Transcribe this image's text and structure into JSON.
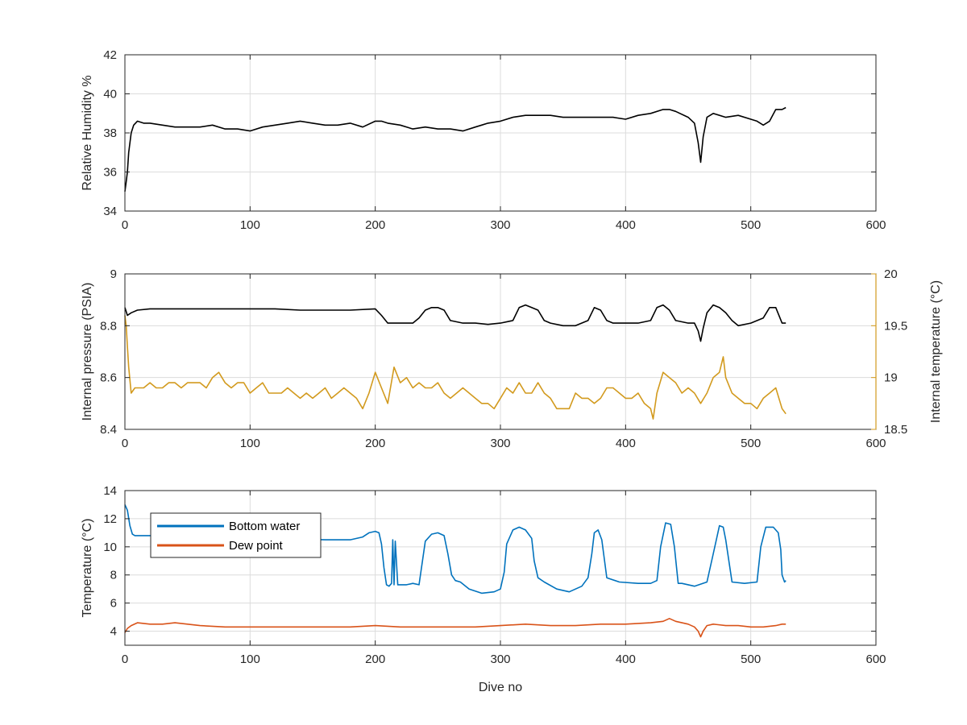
{
  "chart_data": [
    {
      "type": "line",
      "xlabel": "",
      "ylabel": "Relative Humidity %",
      "xlim": [
        0,
        600
      ],
      "ylim": [
        34,
        42
      ],
      "xticks": [
        0,
        100,
        200,
        300,
        400,
        500,
        600
      ],
      "yticks": [
        34,
        36,
        38,
        40,
        42
      ],
      "grid": true,
      "series": [
        {
          "color": "#000000",
          "x": [
            0,
            1,
            2,
            3,
            5,
            7,
            10,
            15,
            20,
            30,
            40,
            50,
            60,
            70,
            80,
            90,
            100,
            110,
            120,
            130,
            140,
            150,
            160,
            170,
            180,
            190,
            200,
            205,
            210,
            220,
            230,
            240,
            250,
            260,
            270,
            280,
            285,
            290,
            300,
            310,
            320,
            330,
            340,
            350,
            360,
            370,
            380,
            390,
            400,
            410,
            420,
            430,
            435,
            440,
            450,
            455,
            458,
            460,
            462,
            465,
            470,
            480,
            490,
            500,
            505,
            510,
            515,
            520,
            525,
            528
          ],
          "y": [
            35.0,
            35.5,
            36.0,
            37.0,
            38.0,
            38.4,
            38.6,
            38.5,
            38.5,
            38.4,
            38.3,
            38.3,
            38.3,
            38.4,
            38.2,
            38.2,
            38.1,
            38.3,
            38.4,
            38.5,
            38.6,
            38.5,
            38.4,
            38.4,
            38.5,
            38.3,
            38.6,
            38.6,
            38.5,
            38.4,
            38.2,
            38.3,
            38.2,
            38.2,
            38.1,
            38.3,
            38.4,
            38.5,
            38.6,
            38.8,
            38.9,
            38.9,
            38.9,
            38.8,
            38.8,
            38.8,
            38.8,
            38.8,
            38.7,
            38.9,
            39.0,
            39.2,
            39.2,
            39.1,
            38.8,
            38.5,
            37.5,
            36.5,
            37.8,
            38.8,
            39.0,
            38.8,
            38.9,
            38.7,
            38.6,
            38.4,
            38.6,
            39.2,
            39.2,
            39.3
          ]
        }
      ]
    },
    {
      "type": "line",
      "xlabel": "",
      "ylabel": "Internal pressure (PSIA)",
      "ylabel_right": "Internal temperature (°C)",
      "xlim": [
        0,
        600
      ],
      "ylim": [
        8.4,
        9
      ],
      "ylim_right": [
        18.5,
        20
      ],
      "xticks": [
        0,
        100,
        200,
        300,
        400,
        500,
        600
      ],
      "yticks": [
        8.4,
        8.6,
        8.8,
        9
      ],
      "yticks_right": [
        18.5,
        19,
        19.5,
        20
      ],
      "ytick_labels": [
        "8.4",
        "8.6",
        "8.8",
        "9"
      ],
      "ytick_labels_right": [
        "18.5",
        "19",
        "19.5",
        "20"
      ],
      "grid": true,
      "series": [
        {
          "axis": "left",
          "color": "#000000",
          "x": [
            0,
            2,
            5,
            10,
            20,
            40,
            60,
            80,
            100,
            120,
            140,
            160,
            180,
            200,
            205,
            210,
            215,
            230,
            235,
            240,
            245,
            250,
            255,
            260,
            270,
            280,
            290,
            300,
            310,
            315,
            320,
            325,
            330,
            335,
            340,
            350,
            360,
            370,
            375,
            380,
            385,
            390,
            400,
            410,
            420,
            425,
            430,
            435,
            440,
            450,
            455,
            458,
            460,
            462,
            465,
            470,
            475,
            480,
            485,
            490,
            500,
            510,
            515,
            520,
            525,
            528
          ],
          "y": [
            8.87,
            8.84,
            8.85,
            8.86,
            8.865,
            8.865,
            8.865,
            8.865,
            8.865,
            8.865,
            8.86,
            8.86,
            8.86,
            8.865,
            8.84,
            8.81,
            8.81,
            8.81,
            8.83,
            8.86,
            8.87,
            8.87,
            8.86,
            8.82,
            8.81,
            8.81,
            8.805,
            8.81,
            8.82,
            8.87,
            8.88,
            8.87,
            8.86,
            8.82,
            8.81,
            8.8,
            8.8,
            8.82,
            8.87,
            8.86,
            8.82,
            8.81,
            8.81,
            8.81,
            8.82,
            8.87,
            8.88,
            8.86,
            8.82,
            8.81,
            8.81,
            8.78,
            8.74,
            8.79,
            8.85,
            8.88,
            8.87,
            8.85,
            8.82,
            8.8,
            8.81,
            8.83,
            8.87,
            8.87,
            8.81,
            8.81
          ]
        },
        {
          "axis": "right",
          "color": "#D29A1E",
          "x": [
            0,
            1,
            2,
            3,
            5,
            8,
            10,
            15,
            20,
            25,
            30,
            35,
            40,
            45,
            50,
            55,
            60,
            65,
            70,
            75,
            80,
            85,
            90,
            95,
            100,
            105,
            110,
            115,
            120,
            125,
            130,
            135,
            140,
            145,
            150,
            155,
            160,
            165,
            170,
            175,
            180,
            185,
            190,
            195,
            200,
            205,
            210,
            215,
            220,
            225,
            230,
            235,
            240,
            245,
            250,
            255,
            260,
            265,
            270,
            275,
            280,
            285,
            290,
            295,
            300,
            305,
            310,
            315,
            320,
            325,
            330,
            335,
            340,
            345,
            350,
            355,
            360,
            365,
            370,
            375,
            380,
            385,
            390,
            395,
            400,
            405,
            410,
            415,
            420,
            422,
            425,
            430,
            435,
            440,
            445,
            450,
            455,
            460,
            465,
            470,
            475,
            478,
            480,
            485,
            490,
            495,
            500,
            505,
            510,
            515,
            520,
            525,
            528
          ],
          "y": [
            19.6,
            19.5,
            19.3,
            19.1,
            18.85,
            18.9,
            18.9,
            18.9,
            18.95,
            18.9,
            18.9,
            18.95,
            18.95,
            18.9,
            18.95,
            18.95,
            18.95,
            18.9,
            19.0,
            19.05,
            18.95,
            18.9,
            18.95,
            18.95,
            18.85,
            18.9,
            18.95,
            18.85,
            18.85,
            18.85,
            18.9,
            18.85,
            18.8,
            18.85,
            18.8,
            18.85,
            18.9,
            18.8,
            18.85,
            18.9,
            18.85,
            18.8,
            18.7,
            18.85,
            19.05,
            18.9,
            18.75,
            19.1,
            18.95,
            19.0,
            18.9,
            18.95,
            18.9,
            18.9,
            18.95,
            18.85,
            18.8,
            18.85,
            18.9,
            18.85,
            18.8,
            18.75,
            18.75,
            18.7,
            18.8,
            18.9,
            18.85,
            18.95,
            18.85,
            18.85,
            18.95,
            18.85,
            18.8,
            18.7,
            18.7,
            18.7,
            18.85,
            18.8,
            18.8,
            18.75,
            18.8,
            18.9,
            18.9,
            18.85,
            18.8,
            18.8,
            18.85,
            18.75,
            18.7,
            18.6,
            18.85,
            19.05,
            19.0,
            18.95,
            18.85,
            18.9,
            18.85,
            18.75,
            18.85,
            19.0,
            19.05,
            19.2,
            19.0,
            18.85,
            18.8,
            18.75,
            18.75,
            18.7,
            18.8,
            18.85,
            18.9,
            18.7,
            18.65
          ]
        }
      ]
    },
    {
      "type": "line",
      "xlabel": "Dive no",
      "ylabel": "Temperature (°C)",
      "xlim": [
        0,
        600
      ],
      "ylim": [
        3,
        14
      ],
      "xticks": [
        0,
        100,
        200,
        300,
        400,
        500,
        600
      ],
      "yticks": [
        4,
        6,
        8,
        10,
        12,
        14
      ],
      "grid": true,
      "legend_position": "top-left",
      "series": [
        {
          "name": "Bottom water",
          "color": "#0072BD",
          "x": [
            0,
            2,
            4,
            6,
            8,
            10,
            20,
            40,
            60,
            80,
            100,
            120,
            140,
            160,
            180,
            190,
            195,
            200,
            203,
            205,
            207,
            209,
            211,
            213,
            214,
            215,
            216,
            218,
            225,
            230,
            235,
            240,
            245,
            250,
            255,
            258,
            261,
            264,
            268,
            275,
            285,
            295,
            300,
            303,
            305,
            310,
            315,
            320,
            325,
            327,
            330,
            335,
            345,
            355,
            365,
            370,
            373,
            375,
            378,
            381,
            385,
            395,
            410,
            420,
            425,
            428,
            432,
            436,
            439,
            442,
            445,
            455,
            465,
            470,
            475,
            478,
            480,
            485,
            495,
            505,
            508,
            512,
            518,
            522,
            524,
            525,
            527,
            528
          ],
          "y": [
            13.0,
            12.6,
            11.5,
            10.9,
            10.8,
            10.8,
            10.8,
            10.75,
            10.7,
            10.7,
            10.65,
            10.6,
            10.55,
            10.5,
            10.5,
            10.7,
            11.0,
            11.1,
            11.0,
            10.2,
            8.5,
            7.3,
            7.2,
            7.4,
            10.5,
            7.3,
            10.4,
            7.3,
            7.3,
            7.4,
            7.3,
            10.4,
            10.9,
            11.0,
            10.8,
            9.5,
            8.0,
            7.6,
            7.5,
            7.0,
            6.7,
            6.8,
            7.0,
            8.2,
            10.2,
            11.2,
            11.4,
            11.2,
            10.6,
            9.0,
            7.8,
            7.5,
            7.0,
            6.8,
            7.2,
            7.8,
            9.5,
            11.0,
            11.2,
            10.5,
            7.8,
            7.5,
            7.4,
            7.4,
            7.6,
            10.0,
            11.7,
            11.6,
            10.0,
            7.4,
            7.4,
            7.2,
            7.5,
            9.5,
            11.5,
            11.4,
            10.5,
            7.5,
            7.4,
            7.5,
            10.0,
            11.4,
            11.4,
            11.0,
            9.8,
            8.0,
            7.5,
            7.6
          ]
        },
        {
          "name": "Dew point",
          "color": "#D95319",
          "x": [
            0,
            2,
            5,
            10,
            20,
            30,
            40,
            60,
            80,
            100,
            120,
            140,
            160,
            180,
            200,
            220,
            240,
            260,
            280,
            300,
            320,
            340,
            360,
            380,
            400,
            420,
            430,
            435,
            440,
            450,
            455,
            458,
            460,
            462,
            465,
            470,
            480,
            490,
            500,
            510,
            520,
            525,
            528
          ],
          "y": [
            3.9,
            4.2,
            4.4,
            4.6,
            4.5,
            4.5,
            4.6,
            4.4,
            4.3,
            4.3,
            4.3,
            4.3,
            4.3,
            4.3,
            4.4,
            4.3,
            4.3,
            4.3,
            4.3,
            4.4,
            4.5,
            4.4,
            4.4,
            4.5,
            4.5,
            4.6,
            4.7,
            4.9,
            4.7,
            4.5,
            4.3,
            4.0,
            3.6,
            4.0,
            4.4,
            4.5,
            4.4,
            4.4,
            4.3,
            4.3,
            4.4,
            4.5,
            4.5
          ]
        }
      ]
    }
  ]
}
